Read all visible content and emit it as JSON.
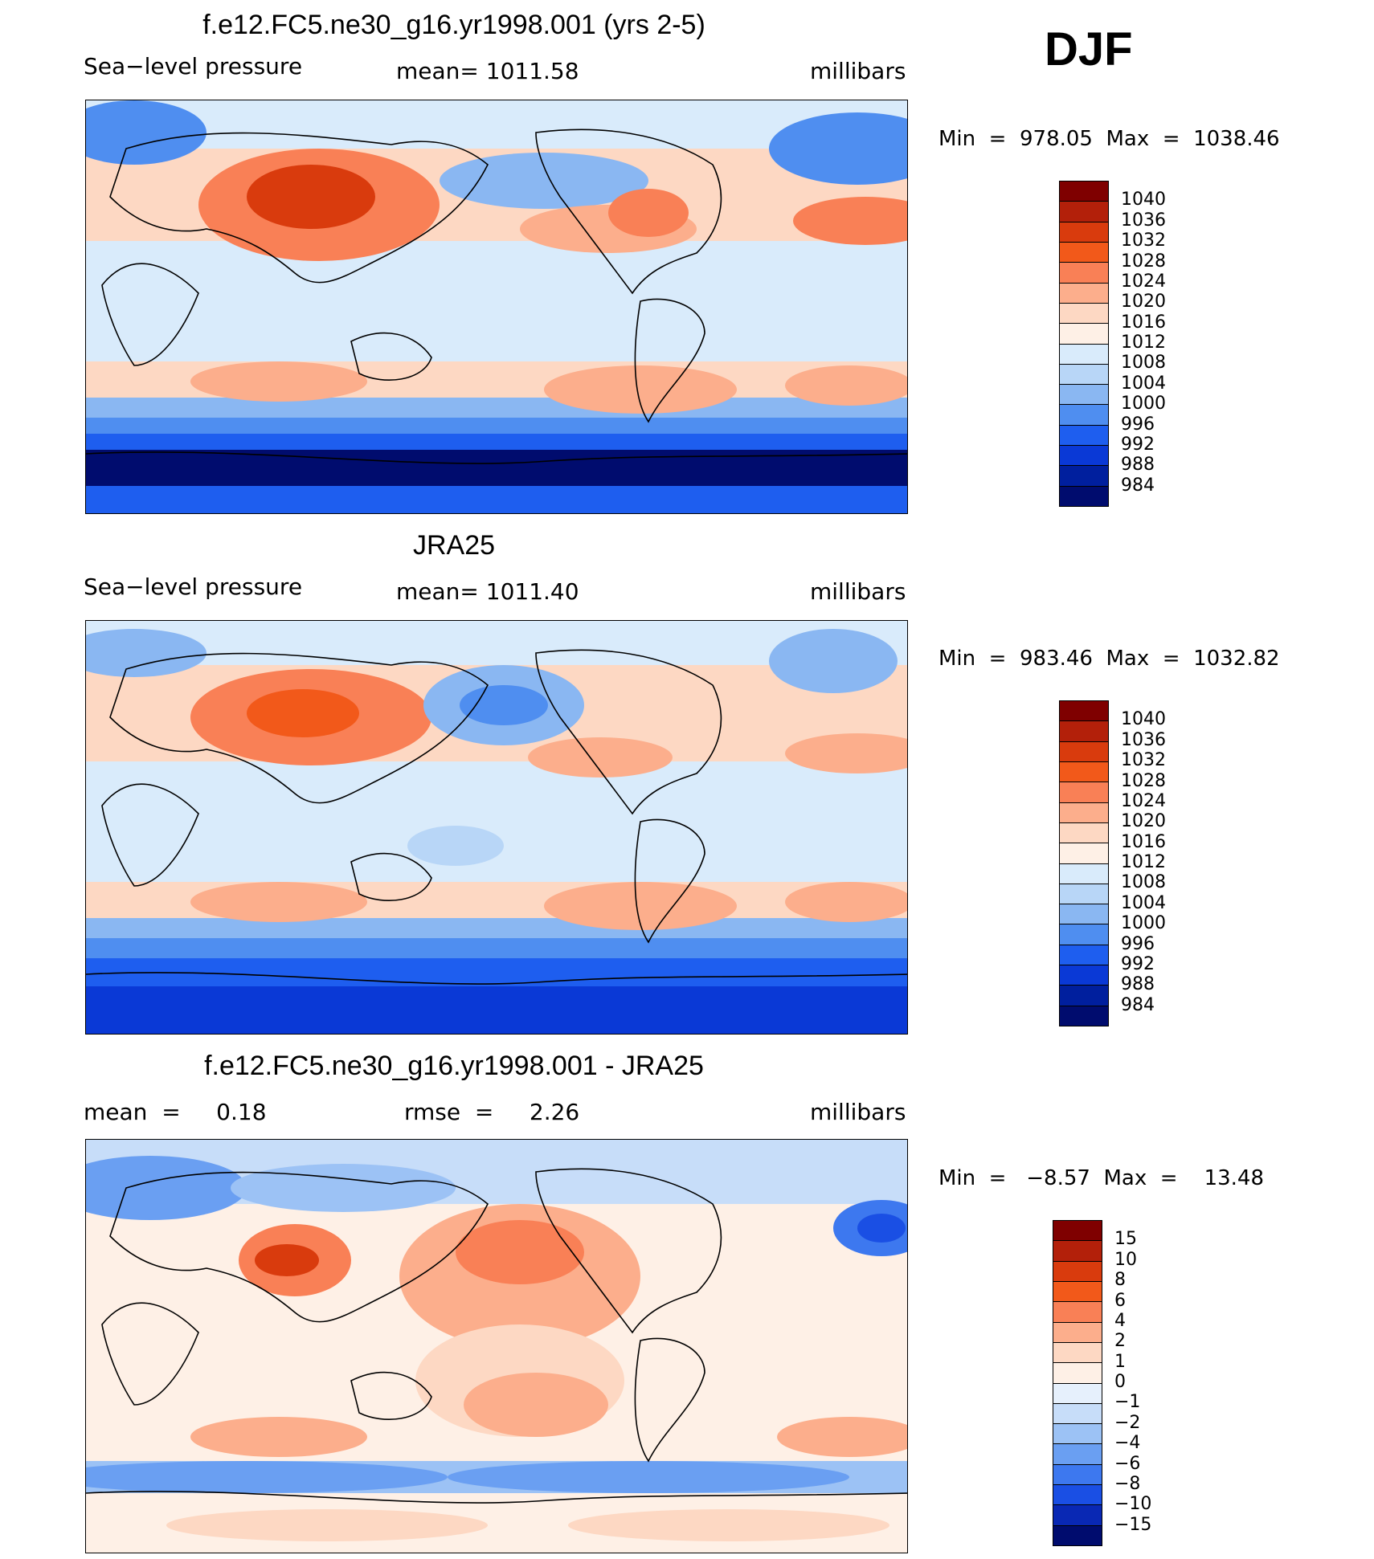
{
  "season": "DJF",
  "panels": [
    {
      "title": "f.e12.FC5.ne30_g16.yr1998.001 (yrs 2-5)",
      "left_label": "Sea−level pressure",
      "center_label": "mean=  1011.58",
      "units": "millibars",
      "minmax": "Min  =  978.05  Max  =  1038.46",
      "colorbar": {
        "labels": [
          "1040",
          "1036",
          "1032",
          "1028",
          "1024",
          "1020",
          "1016",
          "1012",
          "1008",
          "1004",
          "1000",
          "996",
          "992",
          "988",
          "984"
        ],
        "colors": [
          "#7f0000",
          "#b3200a",
          "#d93b0d",
          "#f2591a",
          "#f98056",
          "#fcae8c",
          "#fdd8c3",
          "#fef0e6",
          "#d9ebfb",
          "#b8d6f7",
          "#8ab7f2",
          "#4f8ef0",
          "#1e5eef",
          "#0a39d6",
          "#001f9e",
          "#000c6e"
        ]
      }
    },
    {
      "title": "JRA25",
      "left_label": "Sea−level pressure",
      "center_label": "mean=  1011.40",
      "units": "millibars",
      "minmax": "Min  =  983.46  Max  =  1032.82",
      "colorbar": {
        "labels": [
          "1040",
          "1036",
          "1032",
          "1028",
          "1024",
          "1020",
          "1016",
          "1012",
          "1008",
          "1004",
          "1000",
          "996",
          "992",
          "988",
          "984"
        ],
        "colors": [
          "#7f0000",
          "#b3200a",
          "#d93b0d",
          "#f2591a",
          "#f98056",
          "#fcae8c",
          "#fdd8c3",
          "#fef0e6",
          "#d9ebfb",
          "#b8d6f7",
          "#8ab7f2",
          "#4f8ef0",
          "#1e5eef",
          "#0a39d6",
          "#001f9e",
          "#000c6e"
        ]
      }
    },
    {
      "title": "f.e12.FC5.ne30_g16.yr1998.001 - JRA25",
      "left_label": "mean  =     0.18",
      "center_label": "rmse  =     2.26",
      "units": "millibars",
      "minmax": "Min  =   −8.57  Max  =    13.48",
      "colorbar": {
        "labels": [
          "15",
          "10",
          "8",
          "6",
          "4",
          "2",
          "1",
          "0",
          "−1",
          "−2",
          "−4",
          "−6",
          "−8",
          "−10",
          "−15"
        ],
        "colors": [
          "#7f0000",
          "#b3200a",
          "#d93b0d",
          "#f2591a",
          "#f98056",
          "#fcae8c",
          "#fdd8c3",
          "#fef0e6",
          "#e6f0fc",
          "#c7ddf9",
          "#9cc2f5",
          "#6a9ff2",
          "#3d78ef",
          "#1a4fe4",
          "#0928b4",
          "#000c6e"
        ]
      }
    }
  ],
  "chart_data": [
    {
      "type": "heatmap",
      "title": "f.e12.FC5.ne30_g16.yr1998.001 (yrs 2-5)",
      "variable": "Sea-level pressure",
      "units": "millibars",
      "mean": 1011.58,
      "min": 978.05,
      "max": 1038.46,
      "levels": [
        984,
        988,
        992,
        996,
        1000,
        1004,
        1008,
        1012,
        1016,
        1020,
        1024,
        1028,
        1032,
        1036,
        1040
      ]
    },
    {
      "type": "heatmap",
      "title": "JRA25",
      "variable": "Sea-level pressure",
      "units": "millibars",
      "mean": 1011.4,
      "min": 983.46,
      "max": 1032.82,
      "levels": [
        984,
        988,
        992,
        996,
        1000,
        1004,
        1008,
        1012,
        1016,
        1020,
        1024,
        1028,
        1032,
        1036,
        1040
      ]
    },
    {
      "type": "heatmap",
      "title": "f.e12.FC5.ne30_g16.yr1998.001 - JRA25",
      "units": "millibars",
      "mean": 0.18,
      "rmse": 2.26,
      "min": -8.57,
      "max": 13.48,
      "levels": [
        -15,
        -10,
        -8,
        -6,
        -4,
        -2,
        -1,
        0,
        1,
        2,
        4,
        6,
        8,
        10,
        15
      ]
    }
  ]
}
